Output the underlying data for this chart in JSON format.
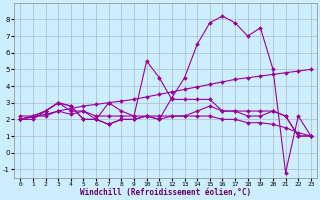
{
  "xlabel": "Windchill (Refroidissement éolien,°C)",
  "bg_color": "#cceeff",
  "grid_color": "#aabbcc",
  "line_color": "#990099",
  "x": [
    0,
    1,
    2,
    3,
    4,
    5,
    6,
    7,
    8,
    9,
    10,
    11,
    12,
    13,
    14,
    15,
    16,
    17,
    18,
    19,
    20,
    21,
    22,
    23
  ],
  "series1": [
    2.0,
    2.2,
    2.5,
    3.0,
    2.8,
    2.0,
    2.0,
    3.0,
    2.5,
    2.2,
    5.5,
    4.5,
    3.2,
    3.2,
    3.2,
    3.2,
    2.5,
    2.5,
    2.5,
    2.5,
    2.5,
    2.2,
    1.0,
    1.0
  ],
  "series2": [
    2.0,
    2.0,
    2.5,
    3.0,
    2.5,
    2.5,
    2.0,
    1.7,
    2.0,
    2.0,
    2.2,
    2.0,
    2.2,
    2.2,
    2.5,
    2.8,
    2.5,
    2.5,
    2.2,
    2.2,
    2.5,
    2.2,
    1.0,
    1.0
  ],
  "series3": [
    2.0,
    2.2,
    2.5,
    3.0,
    2.8,
    2.0,
    2.0,
    1.7,
    2.0,
    2.0,
    2.2,
    2.0,
    3.3,
    4.5,
    6.5,
    7.8,
    8.2,
    7.8,
    7.0,
    7.5,
    5.0,
    -1.2,
    2.2,
    1.0
  ],
  "trend": [
    2.0,
    2.15,
    2.3,
    2.5,
    2.65,
    2.8,
    2.9,
    3.0,
    3.1,
    3.2,
    3.35,
    3.5,
    3.65,
    3.8,
    3.95,
    4.1,
    4.25,
    4.4,
    4.5,
    4.6,
    4.7,
    4.8,
    4.9,
    5.0
  ],
  "declining": [
    2.2,
    2.2,
    2.2,
    2.5,
    2.3,
    2.5,
    2.2,
    2.2,
    2.2,
    2.2,
    2.2,
    2.2,
    2.2,
    2.2,
    2.2,
    2.2,
    2.0,
    2.0,
    1.8,
    1.8,
    1.7,
    1.5,
    1.2,
    1.0
  ],
  "ylim": [
    -1.5,
    9.0
  ],
  "yticks": [
    -1,
    0,
    1,
    2,
    3,
    4,
    5,
    6,
    7,
    8
  ],
  "xlim": [
    -0.5,
    23.5
  ],
  "xticks": [
    0,
    1,
    2,
    3,
    4,
    5,
    6,
    7,
    8,
    9,
    10,
    11,
    12,
    13,
    14,
    15,
    16,
    17,
    18,
    19,
    20,
    21,
    22,
    23
  ]
}
